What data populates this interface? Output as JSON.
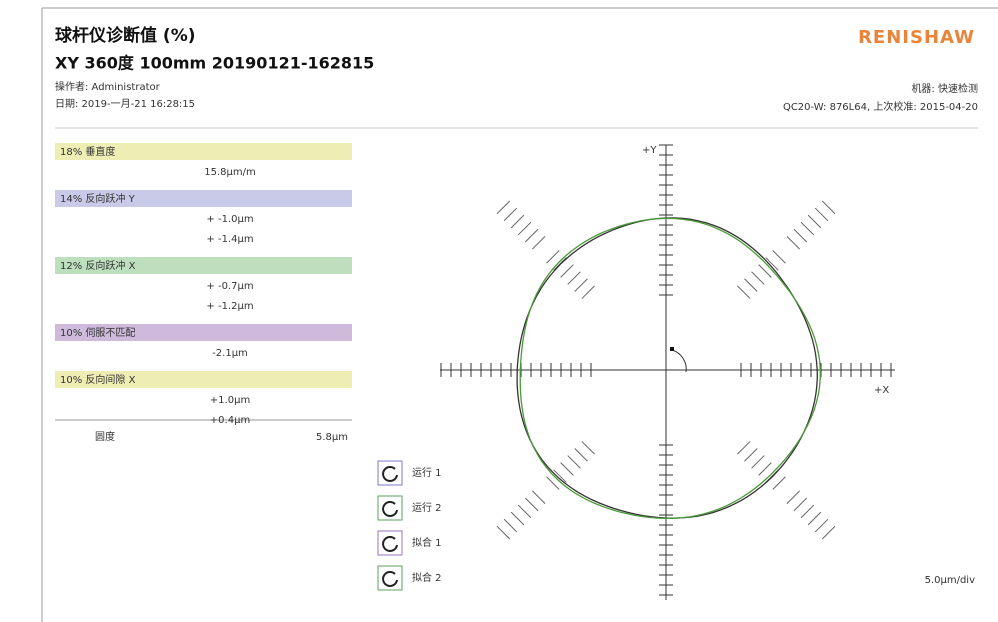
{
  "header": {
    "title": "球杆仪诊断值 (%)",
    "subtitle": "XY 360度  100mm 20190121-162815",
    "operator": "操作者: Administrator",
    "date": "日期: 2019-一月-21 16:28:15",
    "logo": "RENISHAW",
    "machine": "机器: 快速检测",
    "calibration": "QC20-W: 876L64, 上次校准: 2015-04-20"
  },
  "diagnostics": [
    {
      "label": "18% 垂直度",
      "values": [
        "15.8μm/m"
      ]
    },
    {
      "label": "14% 反向跃冲 Y",
      "values": [
        "+ -1.0μm",
        "+ -1.4μm"
      ]
    },
    {
      "label": "12% 反向跃冲 X",
      "values": [
        "+ -0.7μm",
        "+ -1.2μm"
      ]
    },
    {
      "label": "10% 伺服不匹配",
      "values": [
        "-2.1μm"
      ]
    },
    {
      "label": "10% 反向间隙 X",
      "values": [
        "+1.0μm",
        "+0.4μm"
      ]
    }
  ],
  "roundness": {
    "label": "圆度",
    "value": "5.8μm"
  },
  "plot": {
    "y_axis_label": "+Y",
    "x_axis_label": "+X",
    "scale": "5.0μm/div",
    "legend": [
      "运行 1",
      "运行 2",
      "拟合 1",
      "拟合 2"
    ]
  }
}
